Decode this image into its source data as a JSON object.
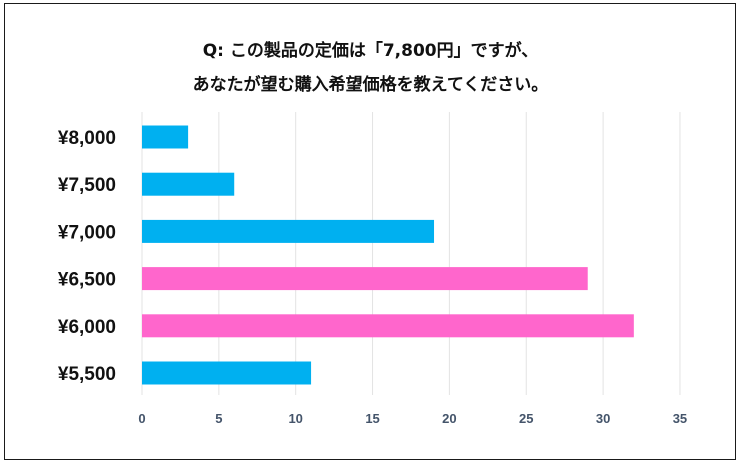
{
  "title_line1": "Q: この製品の定価は「7,800円」ですが、",
  "title_line2": "あなたが望む購入希望価格を教えてください。",
  "chart_data": {
    "type": "bar",
    "orientation": "horizontal",
    "title": "Q: この製品の定価は「7,800円」ですが、あなたが望む購入希望価格を教えてください。",
    "categories": [
      "¥8,000",
      "¥7,500",
      "¥7,000",
      "¥6,500",
      "¥6,000",
      "¥5,500"
    ],
    "values": [
      3,
      6,
      19,
      29,
      32,
      11
    ],
    "highlight": [
      false,
      false,
      false,
      true,
      true,
      false
    ],
    "colors": {
      "default": "#00b0f0",
      "highlight": "#ff66cc"
    },
    "xlim": [
      0,
      35
    ],
    "xticks": [
      0,
      5,
      10,
      15,
      20,
      25,
      30,
      35
    ],
    "grid": "vertical",
    "xlabel": "",
    "ylabel": ""
  }
}
